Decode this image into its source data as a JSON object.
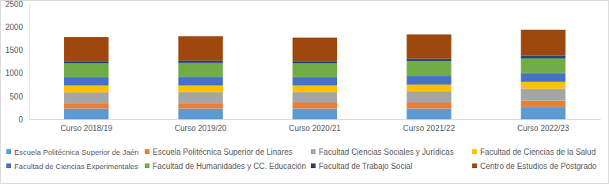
{
  "chart_data": {
    "type": "bar",
    "stacked": true,
    "grid": false,
    "legend": "bottom",
    "categories": [
      "Curso 2018/19",
      "Curso 2019/20",
      "Curso 2020/21",
      "Curso 2021/22",
      "Curso 2022/23"
    ],
    "ylim": [
      0,
      2500
    ],
    "yticks": [
      0,
      500,
      1000,
      1500,
      2000,
      2500
    ],
    "series": [
      {
        "name": "Escuela Politécnica Superior de Jaén",
        "color": "#5b9bd5",
        "values": [
          230,
          230,
          230,
          230,
          270
        ]
      },
      {
        "name": "Escuela Politécnica Superior de Linares",
        "color": "#ed7d31",
        "values": [
          120,
          120,
          130,
          130,
          130
        ]
      },
      {
        "name": "Facultad Ciencias Sociales y Jurídicas",
        "color": "#a5a5a5",
        "values": [
          230,
          240,
          230,
          240,
          260
        ]
      },
      {
        "name": "Facultad de Ciencias de la Salud",
        "color": "#ffc000",
        "values": [
          150,
          140,
          140,
          150,
          150
        ]
      },
      {
        "name": "Facultad de Ciencias Experimentales",
        "color": "#4472c4",
        "values": [
          180,
          190,
          180,
          190,
          190
        ]
      },
      {
        "name": "Facultad de Humanidades y CC. Educación",
        "color": "#70ad47",
        "values": [
          300,
          300,
          300,
          320,
          320
        ]
      },
      {
        "name": "Facultad de Trabajo Social",
        "color": "#264478",
        "values": [
          50,
          50,
          50,
          50,
          60
        ]
      },
      {
        "name": "Centro de Estudios de Postgrado",
        "color": "#9e480e",
        "values": [
          520,
          530,
          510,
          530,
          560
        ]
      }
    ]
  }
}
